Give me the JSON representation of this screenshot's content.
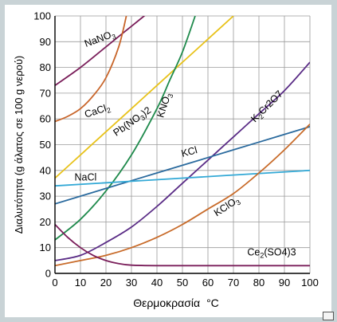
{
  "chart_data": {
    "type": "line",
    "xlabel": "Θερμοκρασία",
    "xlabel_unit": "°C",
    "ylabel": "Διαλυτότητα (g άλατος σε 100 g νερού)",
    "xlim": [
      0,
      100
    ],
    "ylim": [
      0,
      100
    ],
    "xticks": [
      0,
      10,
      20,
      30,
      40,
      50,
      60,
      70,
      80,
      90,
      100
    ],
    "yticks": [
      0,
      10,
      20,
      30,
      40,
      50,
      60,
      70,
      80,
      90,
      100
    ],
    "grid": true,
    "series": [
      {
        "name": "NaNO3",
        "display": [
          "NaNO",
          "3",
          ""
        ],
        "color": "#7a1e5a",
        "x": [
          0,
          10,
          20,
          30,
          40
        ],
        "y": [
          73,
          80,
          88,
          96,
          104
        ]
      },
      {
        "name": "CaCl2",
        "display": [
          "CaCl",
          "2",
          ""
        ],
        "color": "#c8652a",
        "x": [
          0,
          5,
          10,
          15,
          20,
          25,
          28
        ],
        "y": [
          59,
          61,
          64,
          69,
          76,
          88,
          100
        ]
      },
      {
        "name": "Pb(NO3)2",
        "display": [
          "Pb(NO",
          "3",
          ")2"
        ],
        "color": "#e8c21a",
        "x": [
          0,
          10,
          20,
          30,
          40,
          50,
          60,
          70
        ],
        "y": [
          37,
          46,
          55,
          64,
          73,
          82,
          91,
          100
        ]
      },
      {
        "name": "KNO3",
        "display": [
          "KNO",
          "3",
          ""
        ],
        "color": "#1f8a4c",
        "x": [
          0,
          10,
          20,
          30,
          40,
          45,
          50,
          55
        ],
        "y": [
          13,
          21,
          32,
          46,
          64,
          75,
          86,
          100
        ]
      },
      {
        "name": "K2Cr2O7",
        "display": [
          "K",
          "2",
          "Cr2O7"
        ],
        "color": "#5a2c86",
        "x": [
          0,
          10,
          20,
          30,
          40,
          50,
          60,
          70,
          80,
          90,
          100
        ],
        "y": [
          5,
          7,
          12,
          18,
          26,
          35,
          44,
          53,
          62,
          71,
          82
        ]
      },
      {
        "name": "KCl",
        "display": [
          "KCl",
          "",
          ""
        ],
        "color": "#2a6a9e",
        "x": [
          0,
          20,
          40,
          60,
          80,
          100
        ],
        "y": [
          27,
          33,
          39,
          45,
          51,
          57
        ]
      },
      {
        "name": "NaCl",
        "display": [
          "NaCl",
          "",
          ""
        ],
        "color": "#33a9d6",
        "x": [
          0,
          50,
          100
        ],
        "y": [
          34,
          37,
          40
        ]
      },
      {
        "name": "KClO3",
        "display": [
          "KClO",
          "3",
          ""
        ],
        "color": "#c86b2a",
        "x": [
          0,
          10,
          20,
          30,
          40,
          50,
          60,
          70,
          80,
          90,
          100
        ],
        "y": [
          3,
          5,
          7,
          10,
          14,
          19,
          25,
          31,
          39,
          48,
          58
        ]
      },
      {
        "name": "Ce2(SO4)3",
        "display": [
          "Ce",
          "2",
          "(SO4)3"
        ],
        "color": "#7a1e5a",
        "x": [
          0,
          5,
          10,
          15,
          20,
          25,
          30,
          40,
          60,
          80,
          100
        ],
        "y": [
          19,
          14,
          10,
          7,
          5,
          3.8,
          3.2,
          3,
          3,
          3,
          3
        ]
      }
    ],
    "labels": [
      {
        "series": "NaNO3",
        "x": 18,
        "y": 90,
        "angle": -20
      },
      {
        "series": "CaCl2",
        "x": 17,
        "y": 62,
        "angle": -18
      },
      {
        "series": "Pb(NO3)2",
        "x": 31,
        "y": 58,
        "angle": -35
      },
      {
        "series": "KNO3",
        "x": 44,
        "y": 65,
        "angle": -72
      },
      {
        "series": "K2Cr2O7",
        "x": 84,
        "y": 64,
        "angle": -45
      },
      {
        "series": "KCl",
        "x": 53,
        "y": 46,
        "angle": -15
      },
      {
        "series": "NaCl",
        "x": 12,
        "y": 36,
        "angle": 0
      },
      {
        "series": "KClO3",
        "x": 68,
        "y": 25,
        "angle": -33
      },
      {
        "series": "Ce2(SO4)3",
        "x": 85,
        "y": 7,
        "angle": 0
      }
    ]
  },
  "ylabel_text": "Διαλυτότητα (g άλατος σε 100 g νερού)",
  "xlabel_text": "Θερμοκρασία",
  "xlabel_unit_text": "°C"
}
